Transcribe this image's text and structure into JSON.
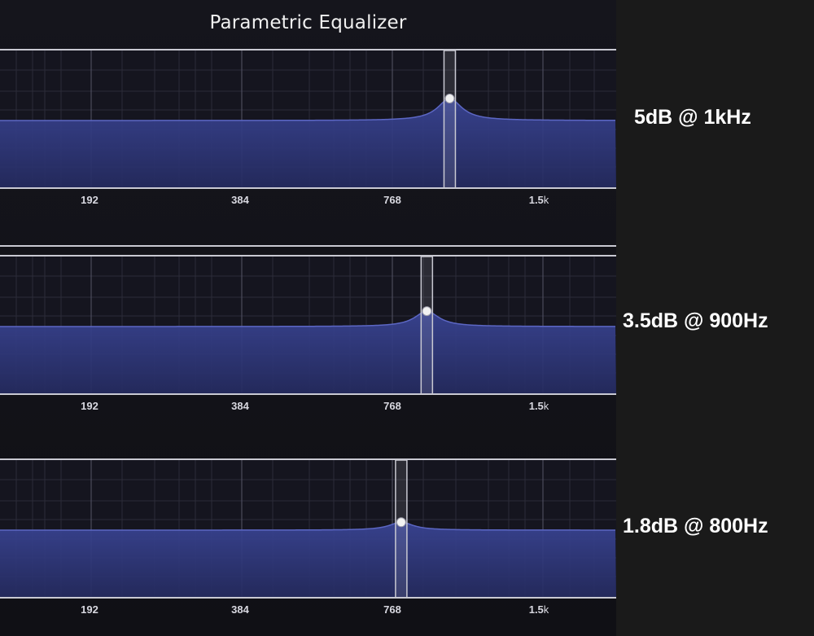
{
  "app": {
    "title": "Parametric Equalizer"
  },
  "colors": {
    "curve_fill_top": "#3a4596",
    "curve_fill_bottom": "#242a5e",
    "curve_stroke": "#5c67c4",
    "grid_minor": "#2b2b38",
    "grid_major": "#555566",
    "frame": "#c9c9d2",
    "handle": "#f2f2f2"
  },
  "freq_axis": {
    "labels": [
      {
        "value": "192",
        "unit": ""
      },
      {
        "value": "384",
        "unit": ""
      },
      {
        "value": "768",
        "unit": ""
      },
      {
        "value": "1.5",
        "unit": "k"
      }
    ]
  },
  "panels": [
    {
      "gain_db": 5,
      "freq_hz": 1000,
      "annotation": "5dB @ 1kHz"
    },
    {
      "gain_db": 3.5,
      "freq_hz": 900,
      "annotation": "3.5dB @ 900Hz"
    },
    {
      "gain_db": 1.8,
      "freq_hz": 800,
      "annotation": "1.8dB @ 800Hz"
    }
  ]
}
